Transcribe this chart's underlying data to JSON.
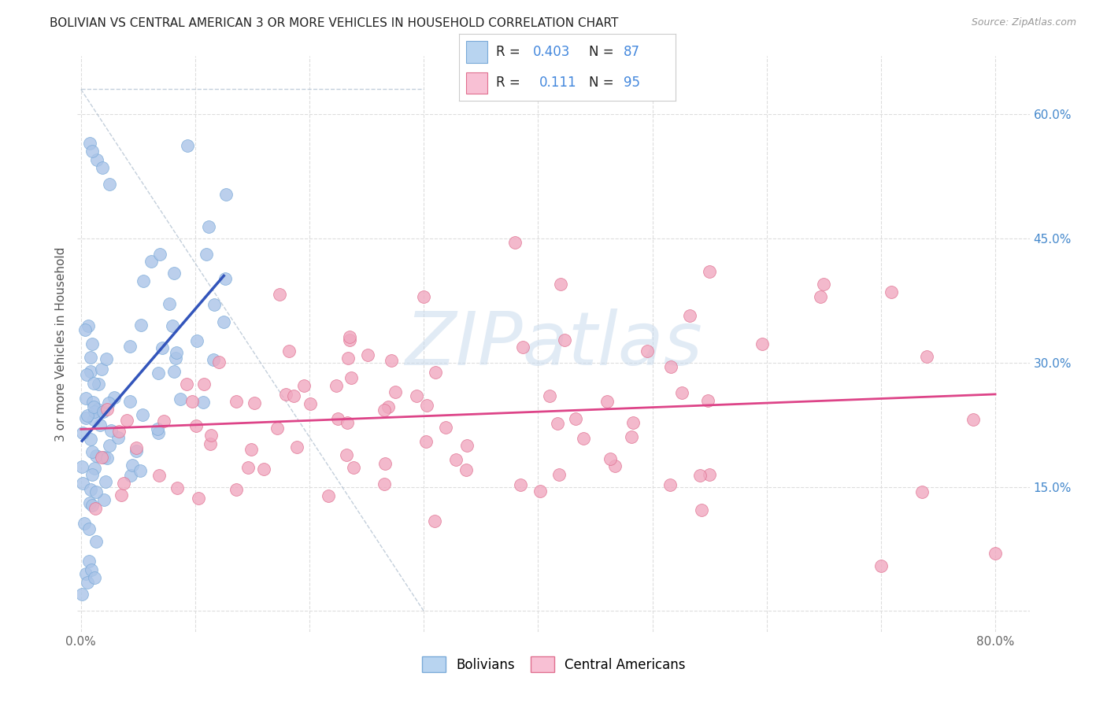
{
  "title": "BOLIVIAN VS CENTRAL AMERICAN 3 OR MORE VEHICLES IN HOUSEHOLD CORRELATION CHART",
  "source": "Source: ZipAtlas.com",
  "ylabel": "3 or more Vehicles in Household",
  "x_ticklabels": [
    "0.0%",
    "",
    "",
    "",
    "",
    "",
    "",
    "",
    "80.0%"
  ],
  "y_ticklabels_right": [
    "",
    "15.0%",
    "30.0%",
    "45.0%",
    "60.0%"
  ],
  "bolivian_color": "#aac4e8",
  "bolivian_edge": "#7aaad8",
  "ca_color": "#f0a8c0",
  "ca_edge": "#e07090",
  "legend_bolivian_color": "#b8d4f0",
  "legend_ca_color": "#f8c0d4",
  "r_bolivian": "0.403",
  "n_bolivian": "87",
  "r_ca": "0.111",
  "n_ca": "95",
  "stat_color": "#4488dd",
  "n_color": "#dd3366",
  "trend_bolivian_color": "#3355bb",
  "trend_ca_color": "#dd4488",
  "diagonal_color": "#aabbcc",
  "watermark_text": "ZIPatlas",
  "watermark_color": "#c5d8ec",
  "background_color": "#ffffff",
  "xlim": [
    -0.003,
    0.83
  ],
  "ylim": [
    -0.025,
    0.67
  ],
  "x_ticks": [
    0.0,
    0.1,
    0.2,
    0.3,
    0.4,
    0.5,
    0.6,
    0.7,
    0.8
  ],
  "y_ticks": [
    0.0,
    0.15,
    0.3,
    0.45,
    0.6
  ]
}
